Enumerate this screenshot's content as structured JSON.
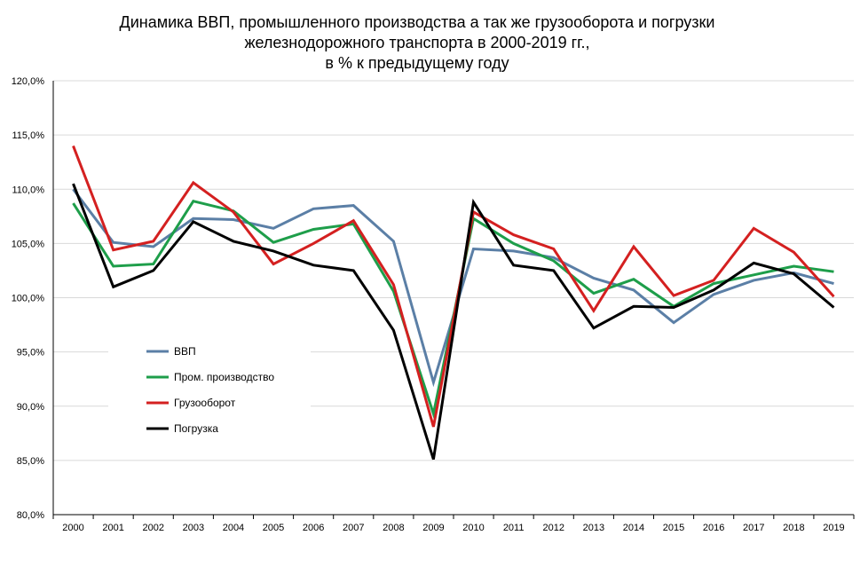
{
  "chart_data": {
    "type": "line",
    "title_lines": [
      "Динамика ВВП, промышленного производства а так же грузооборота и погрузки",
      "железнодорожного транспорта в 2000-2019 гг.,",
      "в % к предыдущему году"
    ],
    "x": [
      "2000",
      "2001",
      "2002",
      "2003",
      "2004",
      "2005",
      "2006",
      "2007",
      "2008",
      "2009",
      "2010",
      "2011",
      "2012",
      "2013",
      "2014",
      "2015",
      "2016",
      "2017",
      "2018",
      "2019"
    ],
    "ylim": [
      80,
      120
    ],
    "yticks": [
      80,
      85,
      90,
      95,
      100,
      105,
      110,
      115,
      120
    ],
    "ytick_labels": [
      "80,0%",
      "85,0%",
      "90,0%",
      "95,0%",
      "100,0%",
      "105,0%",
      "110,0%",
      "115,0%",
      "120,0%"
    ],
    "grid": true,
    "legend_position": "left-center",
    "series": [
      {
        "name": "ВВП",
        "color": "#5b7fa6",
        "values": [
          110.0,
          105.1,
          104.7,
          107.3,
          107.2,
          106.4,
          108.2,
          108.5,
          105.2,
          92.2,
          104.5,
          104.3,
          103.7,
          101.8,
          100.7,
          97.7,
          100.3,
          101.6,
          102.3,
          101.3
        ]
      },
      {
        "name": "Пром. производство",
        "color": "#1e9e4a",
        "values": [
          108.7,
          102.9,
          103.1,
          108.9,
          108.0,
          105.1,
          106.3,
          106.8,
          100.6,
          89.3,
          107.3,
          105.0,
          103.4,
          100.4,
          101.7,
          99.2,
          101.3,
          102.1,
          102.9,
          102.4
        ]
      },
      {
        "name": "Грузооборот",
        "color": "#d42020",
        "values": [
          114.0,
          104.4,
          105.2,
          110.6,
          107.9,
          103.1,
          105.0,
          107.1,
          101.2,
          88.1,
          107.9,
          105.8,
          104.5,
          98.8,
          104.7,
          100.2,
          101.6,
          106.4,
          104.2,
          100.1
        ]
      },
      {
        "name": "Погрузка",
        "color": "#000000",
        "values": [
          110.5,
          101.0,
          102.5,
          107.0,
          105.2,
          104.3,
          103.0,
          102.5,
          97.0,
          85.1,
          108.8,
          103.0,
          102.5,
          97.2,
          99.2,
          99.1,
          100.7,
          103.2,
          102.2,
          99.1
        ]
      }
    ]
  }
}
